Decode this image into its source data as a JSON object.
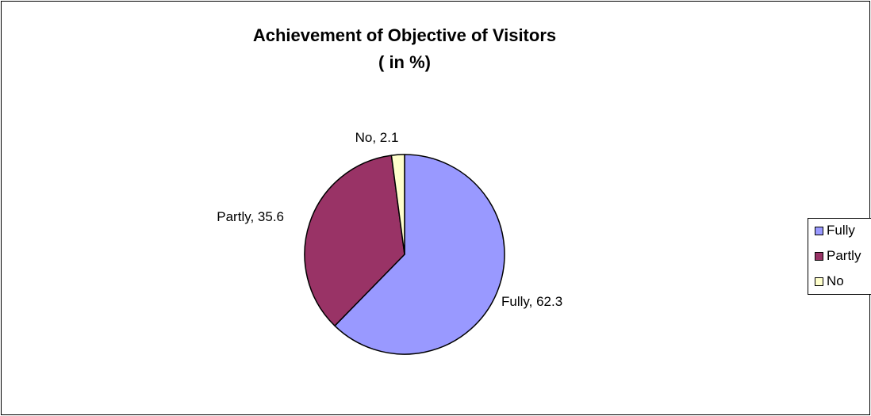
{
  "chart_data": {
    "type": "pie",
    "title": "Achievement of Objective of Visitors",
    "subtitle": "( in %)",
    "categories": [
      "Fully",
      "Partly",
      "No"
    ],
    "values": [
      62.3,
      35.6,
      2.1
    ],
    "data_labels": [
      "Fully, 62.3",
      "Partly, 35.6",
      "No, 2.1"
    ],
    "colors": [
      "#9999FF",
      "#993366",
      "#FFFFCC"
    ],
    "legend": {
      "position": "right",
      "items": [
        "Fully",
        "Partly",
        "No"
      ]
    }
  }
}
